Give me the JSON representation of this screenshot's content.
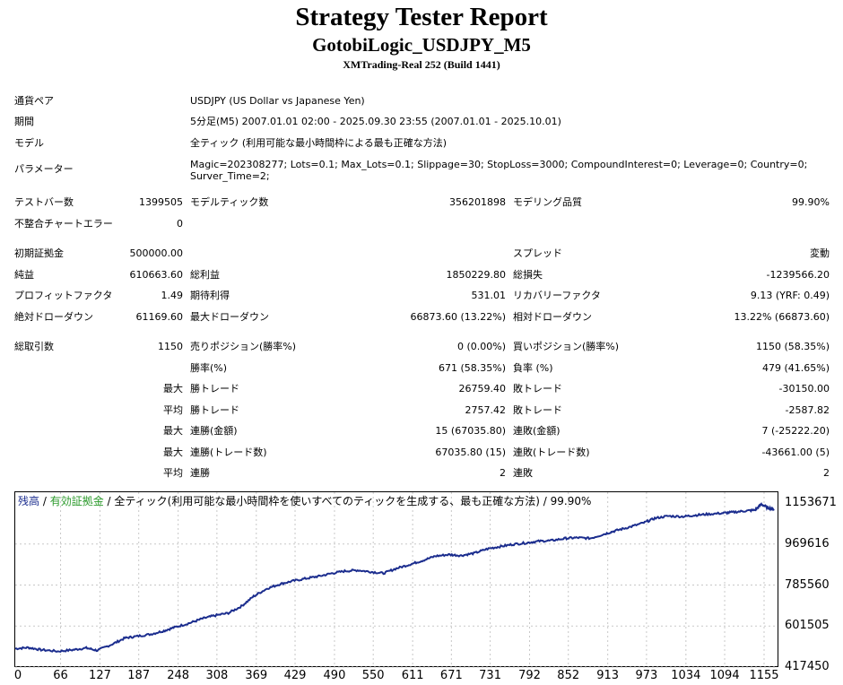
{
  "header": {
    "title": "Strategy Tester Report",
    "subtitle": "GotobiLogic_USDJPY_M5",
    "server": "XMTrading-Real 252 (Build 1441)"
  },
  "info": [
    {
      "label": "通貨ペア",
      "value": "USDJPY (US Dollar vs Japanese Yen)"
    },
    {
      "label": "期間",
      "value": "5分足(M5) 2007.01.01 02:00 - 2025.09.30 23:55 (2007.01.01 - 2025.10.01)"
    },
    {
      "label": "モデル",
      "value": "全ティック (利用可能な最小時間枠による最も正確な方法)"
    }
  ],
  "params": {
    "label": "パラメーター",
    "value": "Magic=202308277; Lots=0.1; Max_Lots=0.1; Slippage=30; StopLoss=3000; CompoundInterest=0; Leverage=0; Country=0; Surver_Time=2;"
  },
  "stats": {
    "bars_label": "テストバー数",
    "bars": "1399505",
    "ticks_label": "モデルティック数",
    "ticks": "356201898",
    "quality_label": "モデリング品質",
    "quality": "99.90%",
    "mismatch_label": "不整合チャートエラー",
    "mismatch": "0",
    "deposit_label": "初期証拠金",
    "deposit": "500000.00",
    "spread_label": "スプレッド",
    "spread": "変動",
    "net_label": "純益",
    "net": "610663.60",
    "gross_profit_label": "総利益",
    "gross_profit": "1850229.80",
    "gross_loss_label": "総損失",
    "gross_loss": "-1239566.20",
    "pf_label": "プロフィットファクタ",
    "pf": "1.49",
    "expected_label": "期待利得",
    "expected": "531.01",
    "recovery_label": "リカバリーファクタ",
    "recovery": "9.13 (YRF: 0.49)",
    "abs_dd_label": "絶対ドローダウン",
    "abs_dd": "61169.60",
    "max_dd_label": "最大ドローダウン",
    "max_dd": "66873.60 (13.22%)",
    "rel_dd_label": "相対ドローダウン",
    "rel_dd": "13.22% (66873.60)",
    "trades_label": "総取引数",
    "trades": "1150",
    "short_label": "売りポジション(勝率%)",
    "short": "0 (0.00%)",
    "long_label": "買いポジション(勝率%)",
    "long": "1150 (58.35%)",
    "win_label": "勝率(%)",
    "win": "671 (58.35%)",
    "loss_label": "負率 (%)",
    "loss": "479 (41.65%)"
  },
  "detail_rows": [
    {
      "prefix": "最大",
      "l1": "勝トレード",
      "v1": "26759.40",
      "l2": "敗トレード",
      "v2": "-30150.00"
    },
    {
      "prefix": "平均",
      "l1": "勝トレード",
      "v1": "2757.42",
      "l2": "敗トレード",
      "v2": "-2587.82"
    },
    {
      "prefix": "最大",
      "l1": "連勝(金額)",
      "v1": "15 (67035.80)",
      "l2": "連敗(金額)",
      "v2": "7 (-25222.20)"
    },
    {
      "prefix": "最大",
      "l1": "連勝(トレード数)",
      "v1": "67035.80 (15)",
      "l2": "連敗(トレード数)",
      "v2": "-43661.00 (5)"
    },
    {
      "prefix": "平均",
      "l1": "連勝",
      "v1": "2",
      "l2": "連敗",
      "v2": "2"
    }
  ],
  "chart": {
    "legend_balance": "残高",
    "legend_sep1": " / ",
    "legend_equity": "有効証拠金",
    "legend_rest": " / 全ティック(利用可能な最小時間枠を使いすべてのティックを生成する、最も正確な方法) / 99.90%",
    "balance_color": "#1b2d8e",
    "equity_color": "#2b9a2b"
  },
  "chart_data": {
    "type": "line",
    "title": "",
    "xlabel": "",
    "ylabel": "",
    "x_ticks": [
      "0",
      "66",
      "127",
      "187",
      "248",
      "308",
      "369",
      "429",
      "490",
      "550",
      "611",
      "671",
      "731",
      "792",
      "852",
      "913",
      "973",
      "1034",
      "1094",
      "1155"
    ],
    "y_ticks": [
      "1153671",
      "969616",
      "785560",
      "601505",
      "417450"
    ],
    "xlim": [
      0,
      1180
    ],
    "ylim": [
      417450,
      1153671
    ],
    "grid": true,
    "series": [
      {
        "name": "残高",
        "x": [
          0,
          20,
          40,
          66,
          90,
          110,
          127,
          150,
          170,
          187,
          210,
          230,
          248,
          270,
          290,
          308,
          330,
          350,
          369,
          390,
          410,
          429,
          450,
          470,
          490,
          510,
          530,
          550,
          570,
          590,
          611,
          630,
          650,
          671,
          690,
          710,
          731,
          750,
          770,
          792,
          810,
          830,
          852,
          870,
          890,
          913,
          930,
          950,
          973,
          990,
          1010,
          1034,
          1050,
          1070,
          1094,
          1110,
          1130,
          1145,
          1155,
          1165,
          1175
        ],
        "y": [
          500000,
          505000,
          495000,
          488000,
          495000,
          503000,
          492000,
          520000,
          548000,
          555000,
          565000,
          580000,
          597000,
          615000,
          635000,
          648000,
          660000,
          690000,
          735000,
          770000,
          790000,
          803000,
          815000,
          825000,
          838000,
          848000,
          852000,
          845000,
          838000,
          860000,
          878000,
          895000,
          915000,
          922000,
          918000,
          928000,
          948000,
          958000,
          968000,
          975000,
          982000,
          985000,
          995000,
          998000,
          995000,
          1015000,
          1030000,
          1045000,
          1065000,
          1085000,
          1095000,
          1093000,
          1098000,
          1103000,
          1108000,
          1112000,
          1118000,
          1122000,
          1148000,
          1132000,
          1125000
        ]
      }
    ]
  }
}
